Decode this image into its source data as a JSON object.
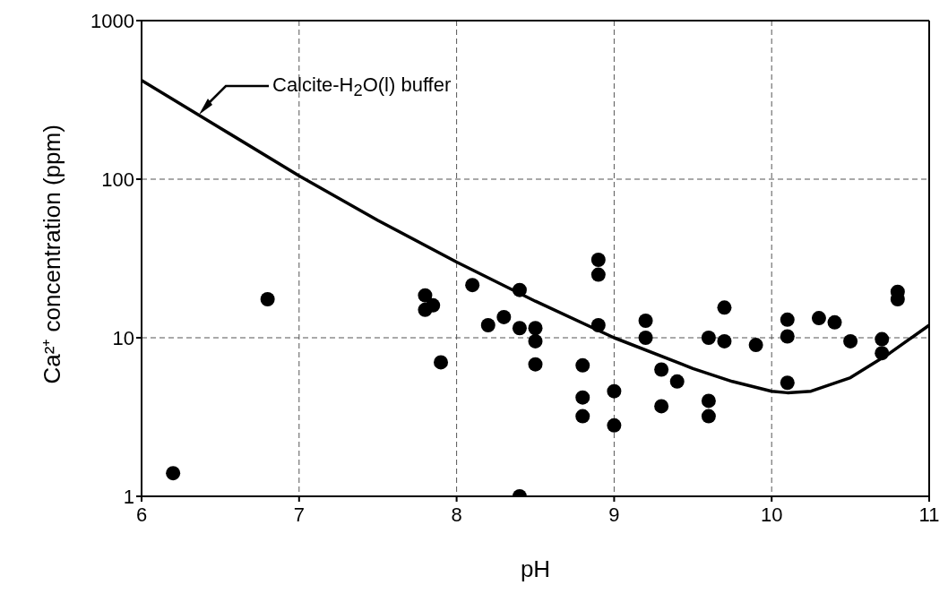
{
  "chart_data": {
    "type": "scatter",
    "xlabel": "pH",
    "ylabel": "Ca²⁺ concentration (ppm)",
    "xlim": [
      6,
      11
    ],
    "xticks": [
      6,
      7,
      8,
      9,
      10,
      11
    ],
    "ylim": [
      1,
      1000
    ],
    "yticks": [
      1,
      10,
      100,
      1000
    ],
    "log": "y",
    "grid": true,
    "series": [
      {
        "marker": "circle",
        "color": "#000000",
        "x": [
          6.2,
          6.8,
          7.8,
          7.8,
          7.85,
          7.9,
          8.1,
          8.2,
          8.3,
          8.4,
          8.4,
          8.4,
          8.5,
          8.5,
          8.5,
          8.8,
          8.8,
          8.8,
          8.9,
          8.9,
          8.9,
          9.0,
          9.0,
          9.2,
          9.2,
          9.3,
          9.3,
          9.4,
          9.6,
          9.6,
          9.6,
          9.7,
          9.7,
          9.9,
          10.1,
          10.1,
          10.1,
          10.3,
          10.4,
          10.5,
          10.7,
          10.7,
          10.8,
          10.8
        ],
        "values": [
          1.4,
          17.5,
          18.5,
          15,
          16,
          7,
          21.5,
          12,
          13.5,
          20,
          11.5,
          1.0,
          11.5,
          9.5,
          6.8,
          6.7,
          4.2,
          3.2,
          31,
          25,
          12,
          4.6,
          2.8,
          12.8,
          10,
          6.3,
          3.7,
          5.3,
          10,
          4.0,
          3.2,
          15.5,
          9.5,
          9,
          13,
          10.2,
          5.2,
          13.3,
          12.5,
          9.5,
          9.8,
          8,
          19.5,
          17.5
        ]
      },
      {
        "type": "line",
        "marker": "none",
        "color": "#000000",
        "x": [
          6.0,
          6.5,
          7.0,
          7.5,
          8.0,
          8.5,
          9.0,
          9.5,
          9.75,
          10.0,
          10.1,
          10.25,
          10.5,
          10.75,
          11.0
        ],
        "values": [
          420,
          210,
          105,
          55,
          30,
          17,
          10,
          6.4,
          5.3,
          4.6,
          4.5,
          4.6,
          5.6,
          8,
          12
        ]
      }
    ],
    "annotations": [
      "Calcite-H$_{2}$O(l) buffer"
    ]
  }
}
